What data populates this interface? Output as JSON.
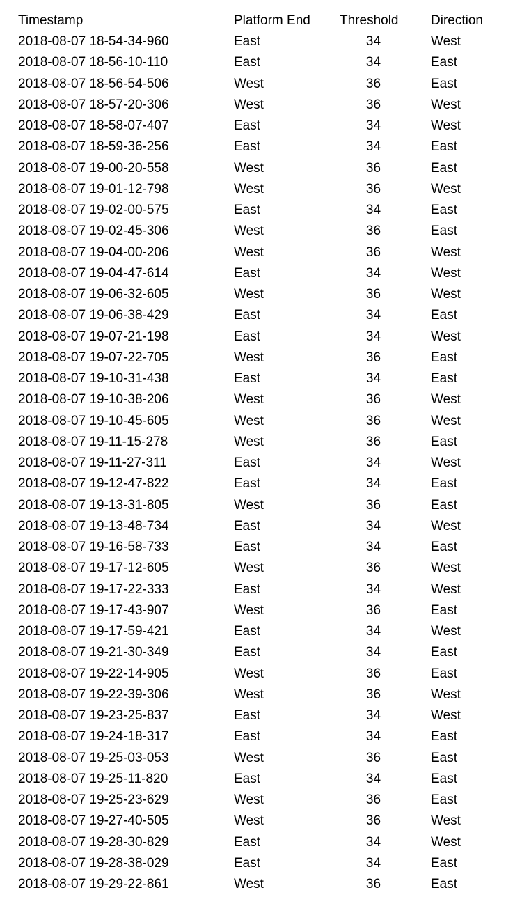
{
  "table": {
    "headers": {
      "timestamp": "Timestamp",
      "platform_end": "Platform End",
      "threshold": "Threshold",
      "direction": "Direction"
    },
    "rows": [
      [
        "2018-08-07 18-54-34-960",
        "East",
        "34",
        "West"
      ],
      [
        "2018-08-07 18-56-10-110",
        "East",
        "34",
        "East"
      ],
      [
        "2018-08-07 18-56-54-506",
        "West",
        "36",
        "East"
      ],
      [
        "2018-08-07 18-57-20-306",
        "West",
        "36",
        "West"
      ],
      [
        "2018-08-07 18-58-07-407",
        "East",
        "34",
        "West"
      ],
      [
        "2018-08-07 18-59-36-256",
        "East",
        "34",
        "East"
      ],
      [
        "2018-08-07 19-00-20-558",
        "West",
        "36",
        "East"
      ],
      [
        "2018-08-07 19-01-12-798",
        "West",
        "36",
        "West"
      ],
      [
        "2018-08-07 19-02-00-575",
        "East",
        "34",
        "East"
      ],
      [
        "2018-08-07 19-02-45-306",
        "West",
        "36",
        "East"
      ],
      [
        "2018-08-07 19-04-00-206",
        "West",
        "36",
        "West"
      ],
      [
        "2018-08-07 19-04-47-614",
        "East",
        "34",
        "West"
      ],
      [
        "2018-08-07 19-06-32-605",
        "West",
        "36",
        "West"
      ],
      [
        "2018-08-07 19-06-38-429",
        "East",
        "34",
        "East"
      ],
      [
        "2018-08-07 19-07-21-198",
        "East",
        "34",
        "West"
      ],
      [
        "2018-08-07 19-07-22-705",
        "West",
        "36",
        "East"
      ],
      [
        "2018-08-07 19-10-31-438",
        "East",
        "34",
        "East"
      ],
      [
        "2018-08-07 19-10-38-206",
        "West",
        "36",
        "West"
      ],
      [
        "2018-08-07 19-10-45-605",
        "West",
        "36",
        "West"
      ],
      [
        "2018-08-07 19-11-15-278",
        "West",
        "36",
        "East"
      ],
      [
        "2018-08-07 19-11-27-311",
        "East",
        "34",
        "West"
      ],
      [
        "2018-08-07 19-12-47-822",
        "East",
        "34",
        "East"
      ],
      [
        "2018-08-07 19-13-31-805",
        "West",
        "36",
        "East"
      ],
      [
        "2018-08-07 19-13-48-734",
        "East",
        "34",
        "West"
      ],
      [
        "2018-08-07 19-16-58-733",
        "East",
        "34",
        "East"
      ],
      [
        "2018-08-07 19-17-12-605",
        "West",
        "36",
        "West"
      ],
      [
        "2018-08-07 19-17-22-333",
        "East",
        "34",
        "West"
      ],
      [
        "2018-08-07 19-17-43-907",
        "West",
        "36",
        "East"
      ],
      [
        "2018-08-07 19-17-59-421",
        "East",
        "34",
        "West"
      ],
      [
        "2018-08-07 19-21-30-349",
        "East",
        "34",
        "East"
      ],
      [
        "2018-08-07 19-22-14-905",
        "West",
        "36",
        "East"
      ],
      [
        "2018-08-07 19-22-39-306",
        "West",
        "36",
        "West"
      ],
      [
        "2018-08-07 19-23-25-837",
        "East",
        "34",
        "West"
      ],
      [
        "2018-08-07 19-24-18-317",
        "East",
        "34",
        "East"
      ],
      [
        "2018-08-07 19-25-03-053",
        "West",
        "36",
        "East"
      ],
      [
        "2018-08-07 19-25-11-820",
        "East",
        "34",
        "East"
      ],
      [
        "2018-08-07 19-25-23-629",
        "West",
        "36",
        "East"
      ],
      [
        "2018-08-07 19-27-40-505",
        "West",
        "36",
        "West"
      ],
      [
        "2018-08-07 19-28-30-829",
        "East",
        "34",
        "West"
      ],
      [
        "2018-08-07 19-28-38-029",
        "East",
        "34",
        "East"
      ],
      [
        "2018-08-07 19-29-22-861",
        "West",
        "36",
        "East"
      ]
    ]
  }
}
